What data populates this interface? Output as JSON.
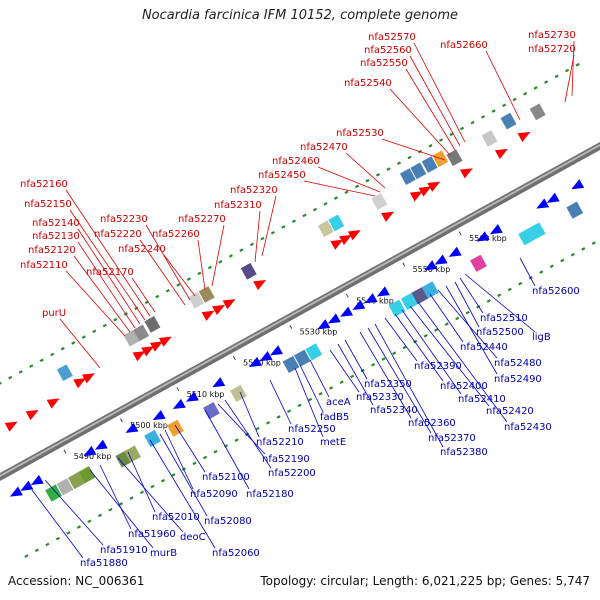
{
  "title": "Nocardia farcinica IFM 10152, complete genome",
  "footer": {
    "accession": "Accession: NC_006361",
    "summary": "Topology: circular; Length: 6,021,225 bp; Genes: 5,747"
  },
  "colors": {
    "backbone": "#8a8a8a",
    "top_label": "#cc0000",
    "bottom_label": "#0000aa",
    "forward_arrow": "#ff0000",
    "reverse_arrow": "#0000ff",
    "dots": "#2a8a2a"
  },
  "axis": {
    "unit": "kbp",
    "ticks": [
      "5490 kbp",
      "5500 kbp",
      "5510 kbp",
      "5520 kbp",
      "5530 kbp",
      "5540 kbp",
      "5550 kbp",
      "5560 kbp"
    ]
  },
  "top_labels": [
    "purU",
    "nfa52110",
    "nfa52120",
    "nfa52130",
    "nfa52140",
    "nfa52150",
    "nfa52160",
    "nfa52170",
    "nfa52220",
    "nfa52230",
    "nfa52240",
    "nfa52260",
    "nfa52270",
    "nfa52310",
    "nfa52320",
    "nfa52450",
    "nfa52460",
    "nfa52470",
    "nfa52530",
    "nfa52540",
    "nfa52550",
    "nfa52560",
    "nfa52570",
    "nfa52660",
    "nfa52720",
    "nfa52730"
  ],
  "bottom_labels": [
    "nfa51880",
    "nfa51910",
    "murB",
    "nfa51960",
    "deoC",
    "nfa52010",
    "nfa52060",
    "nfa52080",
    "nfa52090",
    "nfa52100",
    "nfa52180",
    "nfa52190",
    "nfa52200",
    "nfa52210",
    "nfa52250",
    "metE",
    "fadB5",
    "aceA",
    "nfa52330",
    "nfa52340",
    "nfa52350",
    "nfa52360",
    "nfa52370",
    "nfa52380",
    "nfa52390",
    "nfa52400",
    "nfa52410",
    "nfa52420",
    "nfa52430",
    "nfa52440",
    "nfa52480",
    "nfa52490",
    "nfa52500",
    "nfa52510",
    "ligB",
    "nfa52600"
  ]
}
